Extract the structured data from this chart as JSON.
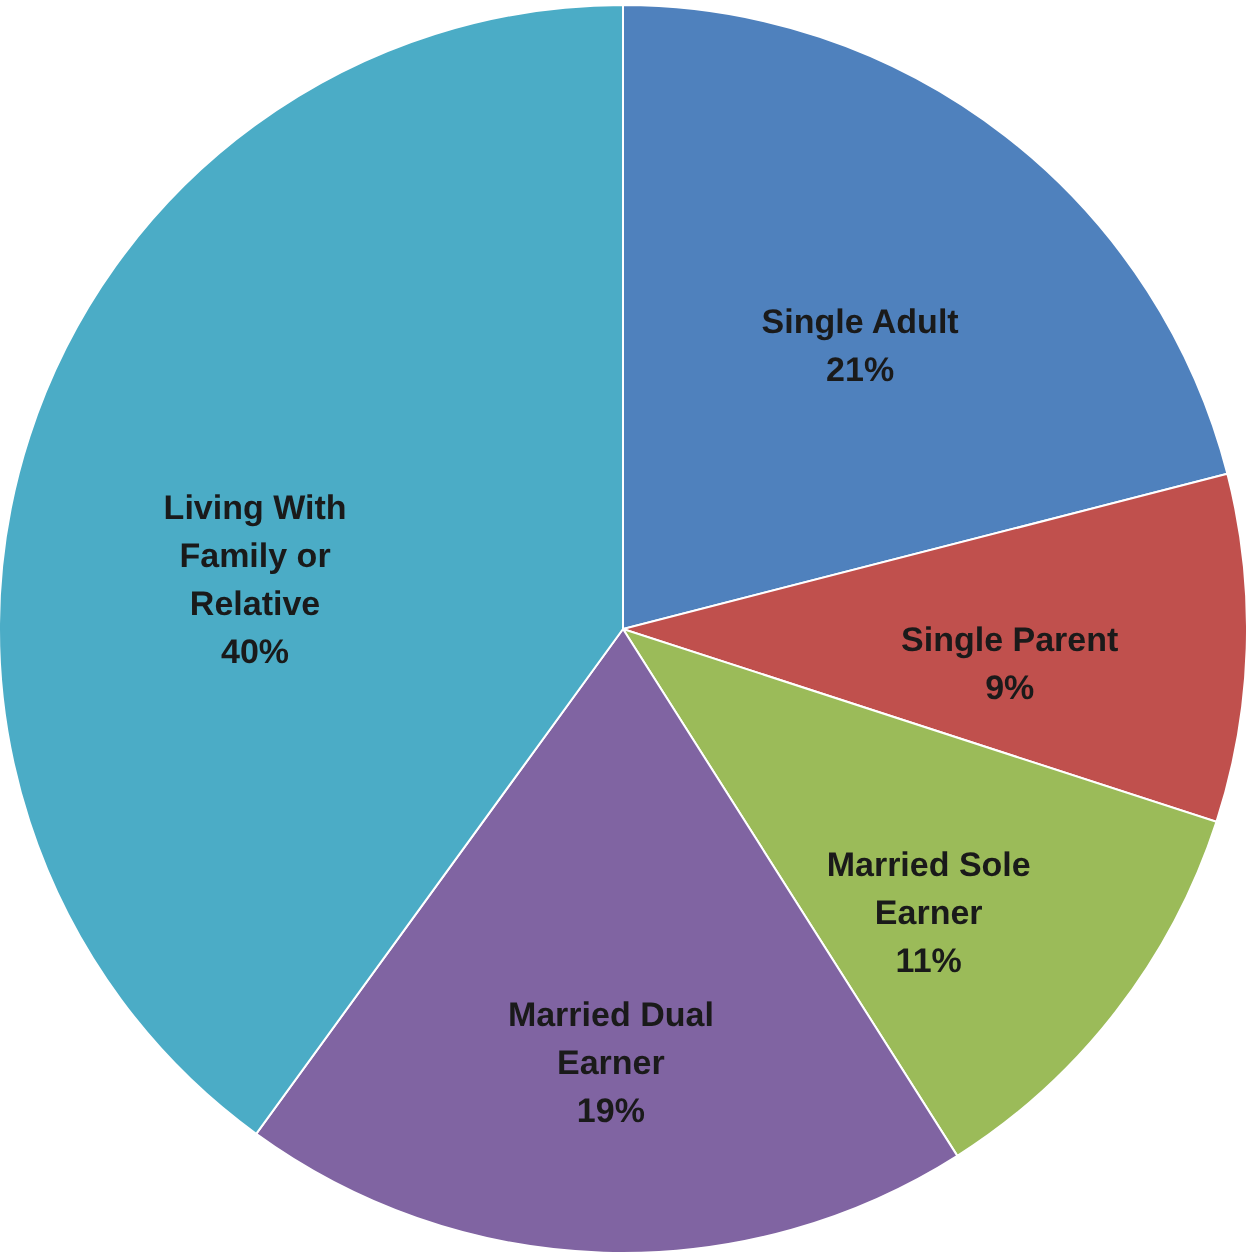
{
  "chart_data": {
    "type": "pie",
    "categories": [
      "Single Adult",
      "Single Parent",
      "Married Sole Earner",
      "Married Dual Earner",
      "Living With Family or Relative"
    ],
    "values": [
      21,
      9,
      11,
      19,
      40
    ],
    "value_labels": [
      "21%",
      "9%",
      "11%",
      "19%",
      "40%"
    ],
    "colors": [
      "#4f81bd",
      "#c0504d",
      "#9bbb59",
      "#8064a2",
      "#4bacc6"
    ]
  }
}
